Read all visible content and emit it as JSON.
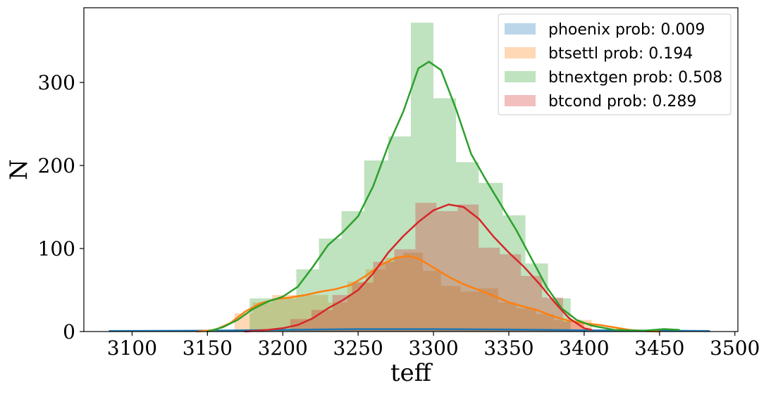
{
  "chart_data": {
    "type": "bar",
    "subtype": "overlaid histogram with density curves",
    "title": "",
    "xlabel": "teff",
    "ylabel": "N",
    "xlim": [
      3068,
      3502
    ],
    "ylim": [
      0,
      390
    ],
    "xticks": [
      3100,
      3150,
      3200,
      3250,
      3300,
      3350,
      3400,
      3450,
      3500
    ],
    "yticks": [
      0,
      100,
      200,
      300
    ],
    "grid": false,
    "legend_position": "top-right",
    "series": [
      {
        "name": "phoenix prob: 0.009",
        "color": "#1f77b4",
        "hist_alpha": 0.3,
        "bins": [
          {
            "x0": 3085,
            "x1": 3483,
            "count": 2
          }
        ],
        "curve": [
          [
            3085,
            0.5
          ],
          [
            3150,
            1
          ],
          [
            3200,
            2
          ],
          [
            3250,
            3
          ],
          [
            3300,
            3
          ],
          [
            3350,
            2.5
          ],
          [
            3400,
            1.5
          ],
          [
            3450,
            1
          ],
          [
            3483,
            0.5
          ]
        ]
      },
      {
        "name": "btsettl prob: 0.194",
        "color": "#ff7f0e",
        "hist_alpha": 0.3,
        "bins": [
          {
            "x0": 3168,
            "x1": 3180,
            "count": 22
          },
          {
            "x0": 3180,
            "x1": 3193,
            "count": 35
          },
          {
            "x0": 3193,
            "x1": 3205,
            "count": 44
          },
          {
            "x0": 3205,
            "x1": 3218,
            "count": 44
          },
          {
            "x0": 3218,
            "x1": 3230,
            "count": 44
          },
          {
            "x0": 3230,
            "x1": 3243,
            "count": 35
          },
          {
            "x0": 3243,
            "x1": 3255,
            "count": 60
          },
          {
            "x0": 3255,
            "x1": 3268,
            "count": 75
          },
          {
            "x0": 3268,
            "x1": 3280,
            "count": 89
          },
          {
            "x0": 3280,
            "x1": 3293,
            "count": 95
          },
          {
            "x0": 3293,
            "x1": 3305,
            "count": 73
          },
          {
            "x0": 3305,
            "x1": 3318,
            "count": 55
          },
          {
            "x0": 3318,
            "x1": 3330,
            "count": 48
          },
          {
            "x0": 3330,
            "x1": 3343,
            "count": 52
          },
          {
            "x0": 3343,
            "x1": 3355,
            "count": 35
          },
          {
            "x0": 3355,
            "x1": 3368,
            "count": 28
          },
          {
            "x0": 3368,
            "x1": 3380,
            "count": 21
          },
          {
            "x0": 3380,
            "x1": 3393,
            "count": 14
          },
          {
            "x0": 3393,
            "x1": 3405,
            "count": 14
          }
        ],
        "curve": [
          [
            3143,
            0
          ],
          [
            3155,
            2
          ],
          [
            3165,
            10
          ],
          [
            3175,
            24
          ],
          [
            3185,
            34
          ],
          [
            3195,
            39
          ],
          [
            3205,
            41
          ],
          [
            3215,
            44
          ],
          [
            3225,
            48
          ],
          [
            3235,
            51
          ],
          [
            3245,
            56
          ],
          [
            3255,
            67
          ],
          [
            3265,
            80
          ],
          [
            3275,
            89
          ],
          [
            3283,
            91
          ],
          [
            3290,
            88
          ],
          [
            3300,
            77
          ],
          [
            3310,
            66
          ],
          [
            3320,
            57
          ],
          [
            3330,
            50
          ],
          [
            3340,
            43
          ],
          [
            3350,
            35
          ],
          [
            3360,
            30
          ],
          [
            3370,
            25
          ],
          [
            3380,
            18
          ],
          [
            3390,
            13
          ],
          [
            3400,
            10
          ],
          [
            3410,
            8
          ],
          [
            3420,
            5
          ],
          [
            3430,
            2
          ],
          [
            3440,
            0.5
          ],
          [
            3450,
            0
          ]
        ]
      },
      {
        "name": "btnextgen prob: 0.508",
        "color": "#2ca02c",
        "hist_alpha": 0.3,
        "bins": [
          {
            "x0": 3178,
            "x1": 3194,
            "count": 40
          },
          {
            "x0": 3194,
            "x1": 3209,
            "count": 40
          },
          {
            "x0": 3209,
            "x1": 3224,
            "count": 75
          },
          {
            "x0": 3224,
            "x1": 3239,
            "count": 112
          },
          {
            "x0": 3239,
            "x1": 3254,
            "count": 145
          },
          {
            "x0": 3254,
            "x1": 3270,
            "count": 206
          },
          {
            "x0": 3270,
            "x1": 3285,
            "count": 235
          },
          {
            "x0": 3285,
            "x1": 3300,
            "count": 372
          },
          {
            "x0": 3300,
            "x1": 3315,
            "count": 281
          },
          {
            "x0": 3315,
            "x1": 3330,
            "count": 204
          },
          {
            "x0": 3330,
            "x1": 3346,
            "count": 179
          },
          {
            "x0": 3346,
            "x1": 3361,
            "count": 140
          },
          {
            "x0": 3361,
            "x1": 3376,
            "count": 82
          },
          {
            "x0": 3376,
            "x1": 3391,
            "count": 40
          }
        ],
        "curve": [
          [
            3150,
            0
          ],
          [
            3160,
            5
          ],
          [
            3170,
            14
          ],
          [
            3180,
            27
          ],
          [
            3190,
            36
          ],
          [
            3200,
            42
          ],
          [
            3210,
            54
          ],
          [
            3220,
            78
          ],
          [
            3230,
            104
          ],
          [
            3240,
            120
          ],
          [
            3250,
            139
          ],
          [
            3260,
            175
          ],
          [
            3270,
            224
          ],
          [
            3280,
            265
          ],
          [
            3290,
            317
          ],
          [
            3297,
            325
          ],
          [
            3305,
            315
          ],
          [
            3315,
            268
          ],
          [
            3325,
            214
          ],
          [
            3335,
            182
          ],
          [
            3345,
            152
          ],
          [
            3355,
            122
          ],
          [
            3365,
            88
          ],
          [
            3375,
            54
          ],
          [
            3385,
            28
          ],
          [
            3395,
            14
          ],
          [
            3405,
            7
          ],
          [
            3420,
            2
          ],
          [
            3440,
            1
          ],
          [
            3453,
            3
          ],
          [
            3463,
            2
          ]
        ]
      },
      {
        "name": "btcond prob: 0.289",
        "color": "#d62728",
        "hist_alpha": 0.3,
        "bins": [
          {
            "x0": 3205,
            "x1": 3219,
            "count": 15
          },
          {
            "x0": 3219,
            "x1": 3233,
            "count": 26
          },
          {
            "x0": 3233,
            "x1": 3246,
            "count": 44
          },
          {
            "x0": 3246,
            "x1": 3260,
            "count": 59
          },
          {
            "x0": 3260,
            "x1": 3274,
            "count": 84
          },
          {
            "x0": 3274,
            "x1": 3288,
            "count": 99
          },
          {
            "x0": 3288,
            "x1": 3302,
            "count": 155
          },
          {
            "x0": 3302,
            "x1": 3316,
            "count": 145
          },
          {
            "x0": 3316,
            "x1": 3330,
            "count": 153
          },
          {
            "x0": 3330,
            "x1": 3344,
            "count": 101
          },
          {
            "x0": 3344,
            "x1": 3358,
            "count": 93
          },
          {
            "x0": 3358,
            "x1": 3372,
            "count": 67
          },
          {
            "x0": 3372,
            "x1": 3386,
            "count": 41
          },
          {
            "x0": 3386,
            "x1": 3400,
            "count": 12
          }
        ],
        "curve": [
          [
            3175,
            0
          ],
          [
            3190,
            2
          ],
          [
            3200,
            4
          ],
          [
            3210,
            8
          ],
          [
            3220,
            16
          ],
          [
            3230,
            28
          ],
          [
            3240,
            38
          ],
          [
            3250,
            50
          ],
          [
            3260,
            70
          ],
          [
            3270,
            95
          ],
          [
            3280,
            115
          ],
          [
            3290,
            132
          ],
          [
            3300,
            146
          ],
          [
            3310,
            153
          ],
          [
            3320,
            150
          ],
          [
            3330,
            136
          ],
          [
            3340,
            114
          ],
          [
            3350,
            95
          ],
          [
            3360,
            78
          ],
          [
            3370,
            58
          ],
          [
            3380,
            36
          ],
          [
            3390,
            16
          ],
          [
            3400,
            4
          ],
          [
            3405,
            2
          ]
        ]
      }
    ]
  }
}
